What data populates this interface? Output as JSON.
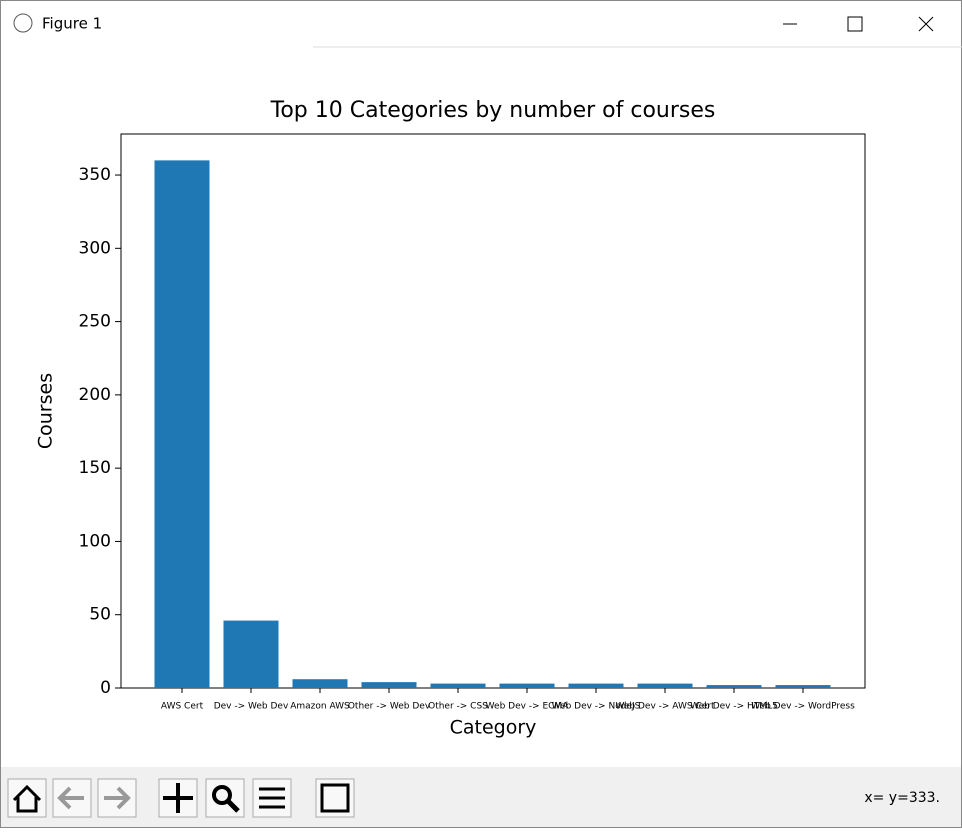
{
  "window": {
    "title": "Figure 1",
    "status": "x= y=333."
  },
  "chart_data": {
    "type": "bar",
    "title": "Top 10 Categories by number of courses",
    "x_label": "Category",
    "y_label": "Courses",
    "categories": [
      "AWS Cert",
      "Dev -> Web Dev",
      "Amazon AWS",
      "Other -> Web Dev",
      "Other -> CSS",
      "Web Dev -> ECMA",
      "Web Dev -> NodeJS",
      "Web Dev -> AWS Cert",
      "Web Dev -> HTML5",
      "Web Dev -> WordPress"
    ],
    "values": [
      360,
      46,
      6,
      4,
      3,
      3,
      3,
      3,
      2,
      2
    ],
    "color": "#1f77b4",
    "ylim": [
      0,
      378
    ],
    "yticks": [
      0,
      50,
      100,
      150,
      200,
      250,
      300,
      350
    ]
  }
}
